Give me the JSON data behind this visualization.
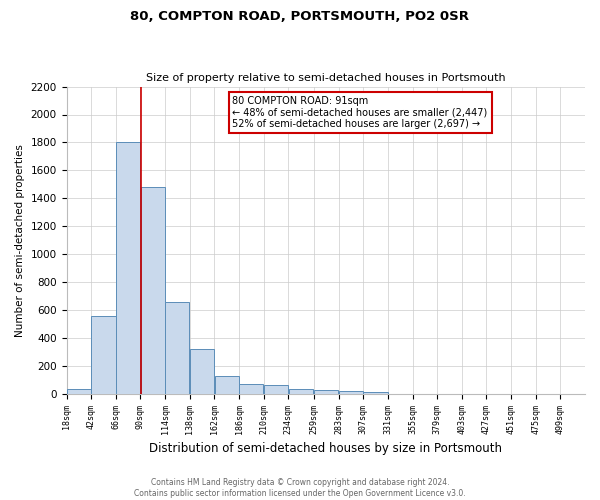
{
  "title": "80, COMPTON ROAD, PORTSMOUTH, PO2 0SR",
  "subtitle": "Size of property relative to semi-detached houses in Portsmouth",
  "xlabel": "Distribution of semi-detached houses by size in Portsmouth",
  "ylabel": "Number of semi-detached properties",
  "bar_left_edges": [
    18,
    42,
    66,
    90,
    114,
    138,
    162,
    186,
    210,
    234,
    259,
    283,
    307,
    331,
    355,
    379,
    403,
    427,
    451,
    475
  ],
  "bar_heights": [
    35,
    560,
    1800,
    1480,
    660,
    325,
    130,
    68,
    62,
    35,
    25,
    20,
    15,
    0,
    0,
    0,
    0,
    0,
    0,
    0
  ],
  "bin_width": 24,
  "bar_color": "#c9d9ec",
  "bar_edge_color": "#5b8db8",
  "property_size": 91,
  "vline_color": "#cc0000",
  "ylim": [
    0,
    2200
  ],
  "yticks": [
    0,
    200,
    400,
    600,
    800,
    1000,
    1200,
    1400,
    1600,
    1800,
    2000,
    2200
  ],
  "xtick_labels": [
    "18sqm",
    "42sqm",
    "66sqm",
    "90sqm",
    "114sqm",
    "138sqm",
    "162sqm",
    "186sqm",
    "210sqm",
    "234sqm",
    "259sqm",
    "283sqm",
    "307sqm",
    "331sqm",
    "355sqm",
    "379sqm",
    "403sqm",
    "427sqm",
    "451sqm",
    "475sqm",
    "499sqm"
  ],
  "annotation_title": "80 COMPTON ROAD: 91sqm",
  "annotation_line1": "← 48% of semi-detached houses are smaller (2,447)",
  "annotation_line2": "52% of semi-detached houses are larger (2,697) →",
  "annotation_box_color": "#ffffff",
  "annotation_box_edge": "#cc0000",
  "footer_line1": "Contains HM Land Registry data © Crown copyright and database right 2024.",
  "footer_line2": "Contains public sector information licensed under the Open Government Licence v3.0.",
  "background_color": "#ffffff",
  "grid_color": "#cccccc"
}
